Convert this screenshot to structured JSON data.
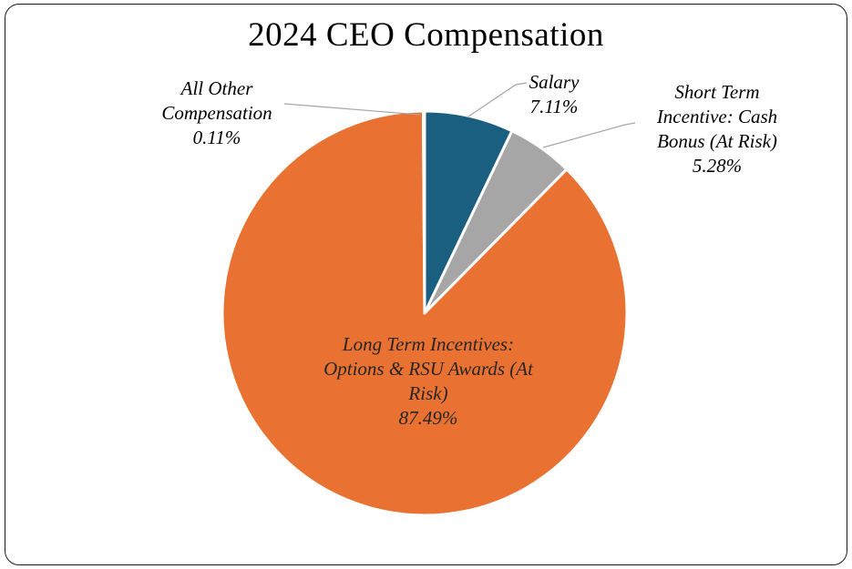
{
  "chart_data": {
    "type": "pie",
    "title": "2024 CEO Compensation",
    "categories": [
      "Salary",
      "Short Term Incentive: Cash Bonus (At Risk)",
      "Long Term Incentives: Options & RSU Awards (At Risk)",
      "All Other Compensation"
    ],
    "values": [
      7.11,
      5.28,
      87.49,
      0.11
    ],
    "unit": "%",
    "colors": [
      "#1b5f80",
      "#a6a6a6",
      "#e97132",
      "#ffffff"
    ],
    "slice_border_color": "#ffffff",
    "start_angle_deg": 0,
    "direction": "clockwise",
    "legend": "none",
    "leader_line_color": "#a6a6a6",
    "data_label_style": "category name + percent, italic serif"
  },
  "labels": {
    "all_other": {
      "lines": [
        "All Other",
        "Compensation",
        "0.11%"
      ]
    },
    "salary": {
      "lines": [
        "Salary",
        "7.11%"
      ]
    },
    "short_term": {
      "lines": [
        "Short Term",
        "Incentive: Cash",
        "Bonus (At Risk)",
        "5.28%"
      ]
    },
    "long_term": {
      "lines": [
        "Long Term Incentives:",
        "Options & RSU Awards (At",
        "Risk)",
        "87.49%"
      ]
    }
  }
}
